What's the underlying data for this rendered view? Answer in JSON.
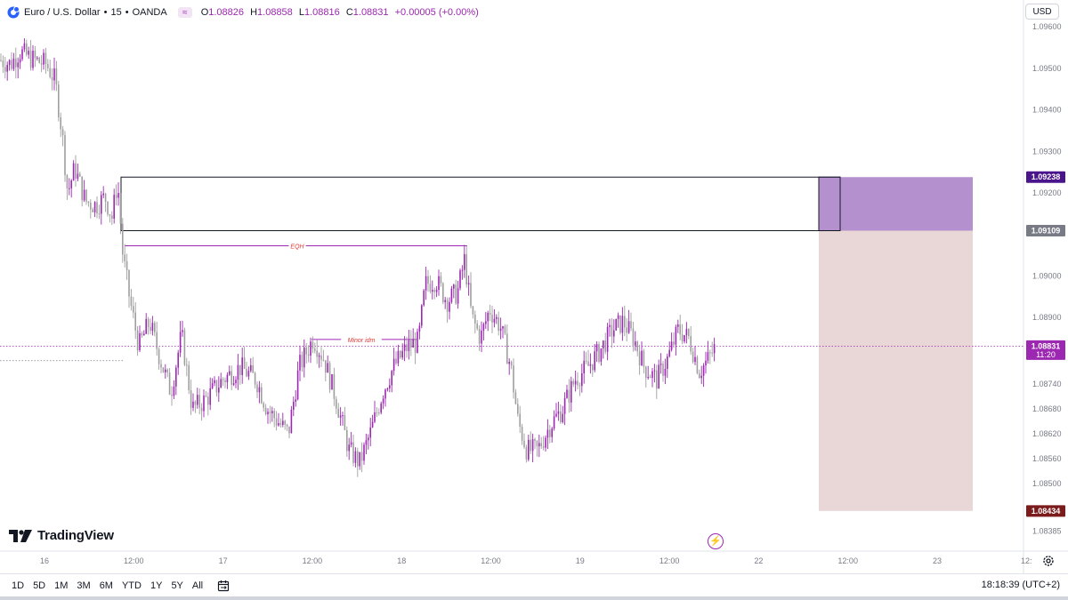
{
  "header": {
    "symbol_name": "Euro / U.S. Dollar",
    "interval": "15",
    "exchange": "OANDA",
    "indicator_glyph": "≈",
    "ohlc": {
      "o_key": "O",
      "o": "1.08826",
      "h_key": "H",
      "h": "1.08858",
      "l_key": "L",
      "l": "1.08816",
      "c_key": "C",
      "c": "1.08831",
      "change": "+0.00005 (+0.00%)"
    }
  },
  "currency_button": "USD",
  "brand": {
    "name": "TradingView",
    "logo_icon": "tradingview-logo-icon"
  },
  "bottom_bar": {
    "ranges": [
      "1D",
      "5D",
      "1M",
      "3M",
      "6M",
      "YTD",
      "1Y",
      "5Y",
      "All"
    ],
    "calendar_icon": "calendar-range-icon",
    "clock": "18:18:39 (UTC+2)"
  },
  "colors": {
    "candle": "#9c27b0",
    "candle_alt": "#9e9e9e",
    "zone_border": "#131722",
    "target_fill": "#9c6bbf",
    "stop_fill": "#c99a9a",
    "label_purple": "#4a148c",
    "label_gray": "#787b86",
    "label_current": "#9c27b0",
    "label_dark_red": "#7b1b1b",
    "annotation_red": "#e53935"
  },
  "chart_data": {
    "type": "candlestick",
    "symbol": "EURUSD",
    "interval_minutes": 15,
    "ylim": [
      1.0835,
      1.0968
    ],
    "y_ticks": [
      "1.09600",
      "1.09500",
      "1.09400",
      "1.09300",
      "1.09200",
      "1.09000",
      "1.08900",
      "1.08740",
      "1.08680",
      "1.08620",
      "1.08560",
      "1.08500",
      "1.08385"
    ],
    "x_ticks": [
      "16",
      "12:00",
      "17",
      "12:00",
      "18",
      "12:00",
      "19",
      "12:00",
      "22",
      "12:00",
      "23",
      "12:"
    ],
    "price_path": [
      [
        0,
        1.0952
      ],
      [
        12,
        1.0951
      ],
      [
        22,
        1.0954
      ],
      [
        38,
        1.0952
      ],
      [
        52,
        1.0951
      ],
      [
        62,
        1.0947
      ],
      [
        70,
        1.0934
      ],
      [
        76,
        1.092
      ],
      [
        84,
        1.0926
      ],
      [
        96,
        1.0918
      ],
      [
        108,
        1.0917
      ],
      [
        118,
        1.0919
      ],
      [
        126,
        1.0914
      ],
      [
        132,
        1.0923
      ],
      [
        138,
        1.0905
      ],
      [
        146,
        1.0894
      ],
      [
        156,
        1.0883
      ],
      [
        168,
        1.0889
      ],
      [
        180,
        1.088
      ],
      [
        192,
        1.0872
      ],
      [
        204,
        1.0886
      ],
      [
        216,
        1.0868
      ],
      [
        230,
        1.087
      ],
      [
        250,
        1.0875
      ],
      [
        270,
        1.0878
      ],
      [
        288,
        1.0875
      ],
      [
        300,
        1.0868
      ],
      [
        312,
        1.0865
      ],
      [
        324,
        1.0862
      ],
      [
        336,
        1.0878
      ],
      [
        352,
        1.0885
      ],
      [
        364,
        1.088
      ],
      [
        378,
        1.087
      ],
      [
        392,
        1.0858
      ],
      [
        404,
        1.0855
      ],
      [
        416,
        1.0862
      ],
      [
        430,
        1.0872
      ],
      [
        442,
        1.0878
      ],
      [
        458,
        1.0883
      ],
      [
        470,
        1.0884
      ],
      [
        478,
        1.0898
      ],
      [
        490,
        1.0899
      ],
      [
        502,
        1.0894
      ],
      [
        514,
        1.0896
      ],
      [
        522,
        1.0904
      ],
      [
        530,
        1.089
      ],
      [
        540,
        1.0885
      ],
      [
        550,
        1.0892
      ],
      [
        562,
        1.0888
      ],
      [
        574,
        1.0878
      ],
      [
        582,
        1.0865
      ],
      [
        592,
        1.0858
      ],
      [
        604,
        1.0858
      ],
      [
        618,
        1.0864
      ],
      [
        632,
        1.0868
      ],
      [
        646,
        1.0875
      ],
      [
        660,
        1.0878
      ],
      [
        674,
        1.0882
      ],
      [
        688,
        1.0887
      ],
      [
        700,
        1.0889
      ],
      [
        712,
        1.0885
      ],
      [
        724,
        1.0878
      ],
      [
        738,
        1.0875
      ],
      [
        750,
        1.088
      ],
      [
        762,
        1.0887
      ],
      [
        774,
        1.0885
      ],
      [
        786,
        1.0877
      ],
      [
        796,
        1.088
      ],
      [
        804,
        1.0883
      ]
    ],
    "eqh_level": 1.09109,
    "minor_idm_level": 1.08847,
    "current_price": 1.08831,
    "last_close_level": 1.08796,
    "zones": [
      {
        "name": "zone-box",
        "top": 1.09238,
        "bottom": 1.09109,
        "x_from": 136,
        "x_to": 944
      },
      {
        "name": "target-zone",
        "top": 1.09238,
        "bottom": 1.09109,
        "x_from": 920,
        "x_to": 1093
      },
      {
        "name": "stop-zone",
        "top": 1.09109,
        "bottom": 1.08434,
        "x_from": 920,
        "x_to": 1093
      }
    ],
    "annotations": [
      {
        "text": "EQH"
      },
      {
        "text": "Minor idm"
      }
    ],
    "price_labels": [
      {
        "value": "1.09238",
        "style": "purple"
      },
      {
        "value": "1.09109",
        "style": "gray"
      },
      {
        "value": "1.08831",
        "sub": "11:20",
        "style": "current"
      },
      {
        "value": "1.08434",
        "style": "dark-red"
      }
    ]
  }
}
